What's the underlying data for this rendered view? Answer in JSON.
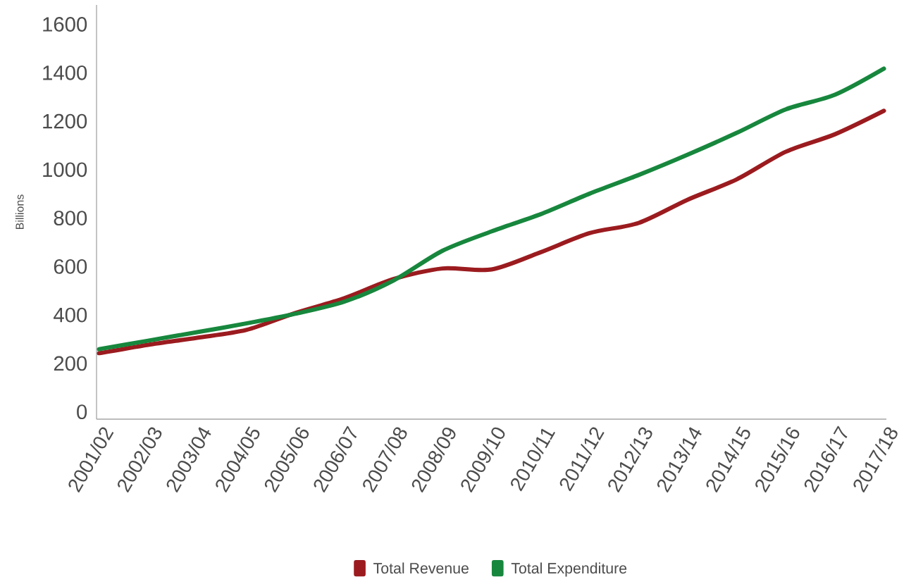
{
  "chart_data": {
    "type": "line",
    "ylabel": "Billions",
    "categories": [
      "2001/02",
      "2002/03",
      "2003/04",
      "2004/05",
      "2005/06",
      "2006/07",
      "2007/08",
      "2008/09",
      "2009/10",
      "2010/11",
      "2011/12",
      "2012/13",
      "2013/14",
      "2014/15",
      "2015/16",
      "2016/17",
      "2017/18"
    ],
    "series": [
      {
        "name": "Total Revenue",
        "color": "#9b1b1f",
        "values": [
          242,
          277,
          306,
          338,
          408,
          469,
          548,
          592,
          588,
          659,
          738,
          780,
          876,
          960,
          1074,
          1146,
          1243
        ]
      },
      {
        "name": "Total Expenditure",
        "color": "#17873d",
        "values": [
          259,
          294,
          329,
          365,
          405,
          455,
          542,
          665,
          745,
          816,
          901,
          978,
          1062,
          1152,
          1249,
          1309,
          1417
        ]
      }
    ],
    "ylim": [
      -30,
      1680
    ],
    "yticks": [
      0,
      200,
      400,
      600,
      800,
      1000,
      1200,
      1400,
      1600
    ],
    "grid": false,
    "legend": "bottom",
    "marker": "none",
    "line_style": "solid"
  }
}
